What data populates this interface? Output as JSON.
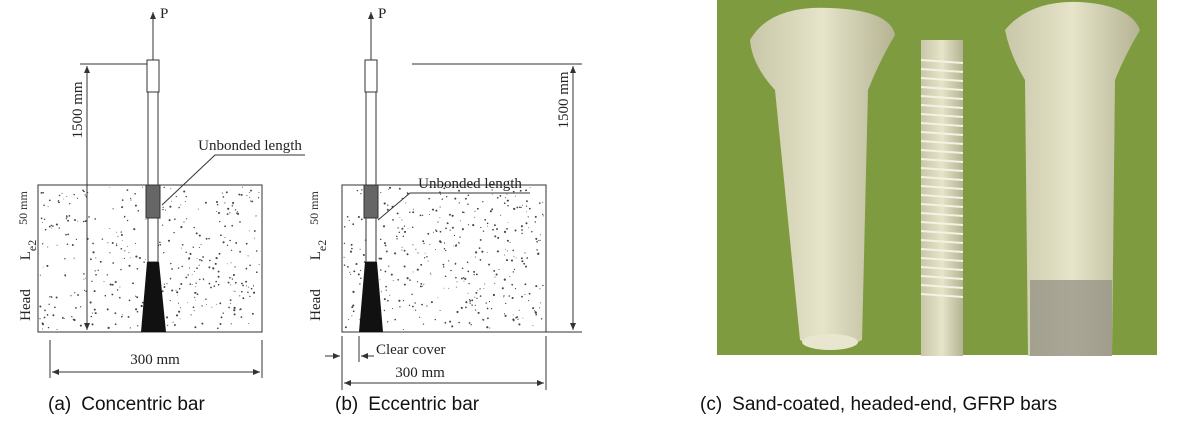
{
  "panels": [
    {
      "label": "(a)",
      "caption": "Concentric bar",
      "load": "P",
      "height": "1500 mm",
      "unbonded": "Unbonded length",
      "top": "50 mm",
      "embed_symbol": "L",
      "embed_sub": "e2",
      "head": "Head",
      "width": "300 mm"
    },
    {
      "label": "(b)",
      "caption": "Eccentric bar",
      "load": "P",
      "height": "1500 mm",
      "unbonded": "Unbonded length",
      "top": "50 mm",
      "embed_symbol": "L",
      "embed_sub": "e2",
      "head": "Head",
      "width": "300 mm",
      "cover": "Clear cover"
    },
    {
      "label": "(c)",
      "caption": "Sand-coated, headed-end, GFRP bars"
    }
  ]
}
